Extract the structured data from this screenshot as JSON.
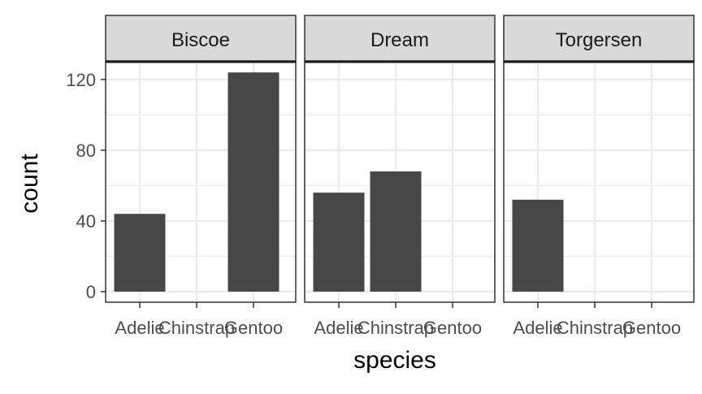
{
  "chart_data": {
    "type": "bar",
    "xlabel": "species",
    "ylabel": "count",
    "ylim": [
      0,
      146
    ],
    "yticks": [
      0,
      40,
      80,
      120
    ],
    "categories": [
      "Adelie",
      "Chinstrap",
      "Gentoo"
    ],
    "grid": true,
    "theme": "black-and-white",
    "colors": {
      "bar": "#474747",
      "grid": "#ebebeb",
      "strip": "#d9d9d9",
      "border": "#333333"
    },
    "panels": [
      {
        "name": "Biscoe",
        "values": [
          44,
          0,
          124
        ]
      },
      {
        "name": "Dream",
        "values": [
          56,
          68,
          0
        ]
      },
      {
        "name": "Torgersen",
        "values": [
          52,
          0,
          0
        ]
      }
    ]
  }
}
